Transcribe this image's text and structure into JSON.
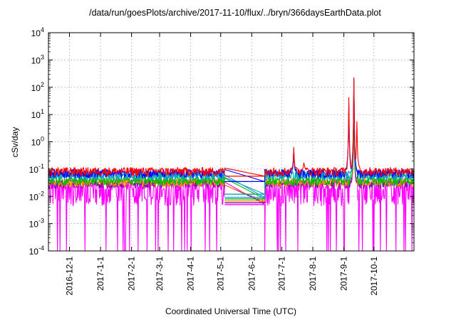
{
  "chart_data": {
    "type": "line",
    "title": "/data/run/goesPlots/archive/2017-11-10/flux/../bryn/366daysEarthData.plot",
    "xlabel": "Coordinated Universal Time (UTC)",
    "ylabel": "cSv/day",
    "yscale": "log",
    "ylim": [
      0.0001,
      10000
    ],
    "xlim": [
      "2016-11-10",
      "2017-11-10"
    ],
    "grid": true,
    "legend": "none",
    "y_ticks": [
      {
        "value": 0.0001,
        "base": "10",
        "exp": "-4"
      },
      {
        "value": 0.001,
        "base": "10",
        "exp": "-3"
      },
      {
        "value": 0.01,
        "base": "10",
        "exp": "-2"
      },
      {
        "value": 0.1,
        "base": "10",
        "exp": "-1"
      },
      {
        "value": 1,
        "base": "10",
        "exp": "0"
      },
      {
        "value": 10,
        "base": "10",
        "exp": "1"
      },
      {
        "value": 100,
        "base": "10",
        "exp": "2"
      },
      {
        "value": 1000,
        "base": "10",
        "exp": "3"
      },
      {
        "value": 10000,
        "base": "10",
        "exp": "4"
      }
    ],
    "x_ticks": [
      "2016-12-1",
      "2017-1-1",
      "2017-2-1",
      "2017-3-1",
      "2017-4-1",
      "2017-5-1",
      "2017-6-1",
      "2017-7-1",
      "2017-8-1",
      "2017-9-1",
      "2017-10-1"
    ],
    "data_gap": [
      "2017-5-5",
      "2017-6-14"
    ],
    "series": [
      {
        "color": "#ff0000",
        "baseline": 0.1,
        "peaks": [
          {
            "x": "2017-7-13",
            "y": 0.7
          },
          {
            "x": "2017-7-23",
            "y": 0.2
          },
          {
            "x": "2017-9-6",
            "y": 40
          },
          {
            "x": "2017-9-11",
            "y": 260
          },
          {
            "x": "2017-9-14",
            "y": 6
          }
        ],
        "gap_level": 0.055
      },
      {
        "color": "#0000ff",
        "baseline": 0.085,
        "peaks": [
          {
            "x": "2017-7-13",
            "y": 0.5
          },
          {
            "x": "2017-9-6",
            "y": 25
          },
          {
            "x": "2017-9-11",
            "y": 200
          }
        ],
        "gap_level": 0.035
      },
      {
        "color": "#00aaaa",
        "baseline": 0.07,
        "peaks": [
          {
            "x": "2017-9-11",
            "y": 150
          }
        ],
        "gap_level": 0.012
      },
      {
        "color": "#2288ff",
        "baseline": 0.075,
        "peaks": [
          {
            "x": "2017-7-13",
            "y": 0.4
          },
          {
            "x": "2017-9-11",
            "y": 180
          }
        ],
        "gap_level": 0.009
      },
      {
        "color": "#00bb00",
        "baseline": 0.045,
        "peaks": [
          {
            "x": "2017-9-11",
            "y": 30
          }
        ],
        "gap_level": 0.008
      },
      {
        "color": "#ff8800",
        "baseline": 0.04,
        "peaks": [
          {
            "x": "2017-9-11",
            "y": 20
          }
        ],
        "gap_level": 0.0068
      },
      {
        "color": "#8800aa",
        "baseline": 0.035,
        "peaks": [
          {
            "x": "2017-9-11",
            "y": 15
          }
        ],
        "gap_level": 0.0058
      },
      {
        "color": "#ff00ff",
        "baseline": 0.03,
        "min": 0.0001,
        "dips_to": 0.0001,
        "peaks": [
          {
            "x": "2017-9-11",
            "y": 8
          }
        ],
        "gap_level": 0.005
      }
    ]
  }
}
